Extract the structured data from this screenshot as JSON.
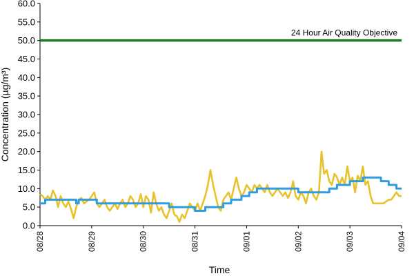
{
  "chart_data": {
    "type": "line",
    "ylabel": "Concentration (µg/m³)",
    "xlabel": "Time",
    "ylim": [
      0,
      60
    ],
    "y_ticks": [
      "0.0",
      "5.0",
      "10.0",
      "15.0",
      "20.0",
      "25.0",
      "30.0",
      "35.0",
      "40.0",
      "45.0",
      "50.0",
      "55.0",
      "60.0"
    ],
    "x_ticks": [
      "08/28",
      "08/29",
      "08/30",
      "08/31",
      "09/01",
      "09/02",
      "09/03",
      "09/04"
    ],
    "xlim": [
      0,
      7
    ],
    "grid": false,
    "objective": {
      "label": "24 Hour Air Quality Objective",
      "value": 50,
      "color": "#1e7a1e"
    },
    "series": [
      {
        "color": "#e8c22a",
        "points": [
          [
            0.0,
            8.5
          ],
          [
            0.05,
            8.0
          ],
          [
            0.1,
            7.0
          ],
          [
            0.15,
            8.0
          ],
          [
            0.2,
            7.0
          ],
          [
            0.25,
            9.5
          ],
          [
            0.3,
            8.0
          ],
          [
            0.35,
            5.0
          ],
          [
            0.4,
            8.0
          ],
          [
            0.45,
            6.0
          ],
          [
            0.5,
            5.0
          ],
          [
            0.55,
            6.5
          ],
          [
            0.6,
            4.5
          ],
          [
            0.65,
            2.0
          ],
          [
            0.7,
            5.0
          ],
          [
            0.75,
            7.0
          ],
          [
            0.8,
            7.5
          ],
          [
            0.85,
            6.0
          ],
          [
            0.9,
            6.5
          ],
          [
            0.95,
            7.0
          ],
          [
            1.0,
            8.0
          ],
          [
            1.05,
            9.0
          ],
          [
            1.1,
            6.0
          ],
          [
            1.15,
            5.0
          ],
          [
            1.2,
            6.0
          ],
          [
            1.25,
            7.0
          ],
          [
            1.3,
            5.0
          ],
          [
            1.35,
            4.0
          ],
          [
            1.4,
            5.0
          ],
          [
            1.45,
            6.0
          ],
          [
            1.5,
            4.5
          ],
          [
            1.55,
            6.0
          ],
          [
            1.6,
            7.0
          ],
          [
            1.65,
            5.0
          ],
          [
            1.7,
            6.0
          ],
          [
            1.75,
            8.0
          ],
          [
            1.8,
            7.0
          ],
          [
            1.85,
            5.0
          ],
          [
            1.9,
            6.0
          ],
          [
            1.95,
            8.5
          ],
          [
            2.0,
            5.0
          ],
          [
            2.05,
            8.0
          ],
          [
            2.1,
            7.0
          ],
          [
            2.15,
            3.5
          ],
          [
            2.2,
            9.0
          ],
          [
            2.25,
            6.0
          ],
          [
            2.3,
            4.0
          ],
          [
            2.35,
            5.0
          ],
          [
            2.4,
            3.0
          ],
          [
            2.45,
            2.0
          ],
          [
            2.5,
            4.0
          ],
          [
            2.55,
            6.0
          ],
          [
            2.6,
            3.0
          ],
          [
            2.65,
            2.5
          ],
          [
            2.7,
            1.0
          ],
          [
            2.75,
            3.0
          ],
          [
            2.8,
            2.0
          ],
          [
            2.85,
            4.0
          ],
          [
            2.9,
            6.0
          ],
          [
            2.95,
            5.0
          ],
          [
            3.0,
            4.0
          ],
          [
            3.05,
            6.0
          ],
          [
            3.1,
            4.0
          ],
          [
            3.15,
            6.0
          ],
          [
            3.2,
            8.0
          ],
          [
            3.25,
            11.0
          ],
          [
            3.3,
            15.0
          ],
          [
            3.35,
            11.0
          ],
          [
            3.4,
            8.0
          ],
          [
            3.45,
            5.0
          ],
          [
            3.5,
            4.0
          ],
          [
            3.55,
            7.0
          ],
          [
            3.6,
            8.0
          ],
          [
            3.65,
            9.0
          ],
          [
            3.7,
            7.0
          ],
          [
            3.75,
            10.0
          ],
          [
            3.8,
            13.0
          ],
          [
            3.85,
            10.0
          ],
          [
            3.9,
            8.0
          ],
          [
            3.95,
            9.0
          ],
          [
            4.0,
            11.0
          ],
          [
            4.05,
            10.0
          ],
          [
            4.1,
            9.0
          ],
          [
            4.15,
            11.0
          ],
          [
            4.2,
            10.0
          ],
          [
            4.25,
            11.0
          ],
          [
            4.3,
            10.0
          ],
          [
            4.35,
            9.0
          ],
          [
            4.4,
            11.0
          ],
          [
            4.45,
            9.0
          ],
          [
            4.5,
            8.0
          ],
          [
            4.55,
            9.0
          ],
          [
            4.6,
            10.0
          ],
          [
            4.65,
            9.0
          ],
          [
            4.7,
            8.0
          ],
          [
            4.75,
            9.0
          ],
          [
            4.8,
            7.5
          ],
          [
            4.85,
            9.0
          ],
          [
            4.9,
            12.0
          ],
          [
            4.95,
            8.0
          ],
          [
            5.0,
            7.0
          ],
          [
            5.05,
            9.0
          ],
          [
            5.1,
            8.0
          ],
          [
            5.15,
            6.0
          ],
          [
            5.2,
            9.0
          ],
          [
            5.25,
            10.0
          ],
          [
            5.3,
            8.0
          ],
          [
            5.35,
            7.0
          ],
          [
            5.4,
            9.0
          ],
          [
            5.45,
            20.0
          ],
          [
            5.5,
            14.0
          ],
          [
            5.55,
            15.0
          ],
          [
            5.6,
            12.0
          ],
          [
            5.65,
            11.0
          ],
          [
            5.7,
            14.0
          ],
          [
            5.75,
            13.0
          ],
          [
            5.8,
            11.0
          ],
          [
            5.85,
            13.0
          ],
          [
            5.9,
            11.0
          ],
          [
            5.95,
            16.0
          ],
          [
            6.0,
            12.0
          ],
          [
            6.05,
            13.0
          ],
          [
            6.1,
            9.0
          ],
          [
            6.15,
            13.5
          ],
          [
            6.2,
            12.0
          ],
          [
            6.25,
            16.0
          ],
          [
            6.3,
            11.0
          ],
          [
            6.35,
            12.0
          ],
          [
            6.4,
            8.0
          ],
          [
            6.45,
            6.0
          ],
          [
            6.5,
            6.0
          ],
          [
            6.55,
            6.0
          ],
          [
            6.6,
            6.0
          ],
          [
            6.65,
            6.0
          ],
          [
            6.7,
            6.5
          ],
          [
            6.75,
            7.0
          ],
          [
            6.8,
            7.0
          ],
          [
            6.85,
            8.0
          ],
          [
            6.9,
            9.0
          ],
          [
            6.95,
            8.0
          ],
          [
            7.0,
            8.0
          ]
        ]
      },
      {
        "color": "#2e9de0",
        "points": [
          [
            0.0,
            6
          ],
          [
            0.1,
            6
          ],
          [
            0.1,
            7
          ],
          [
            0.7,
            7
          ],
          [
            0.7,
            6
          ],
          [
            0.75,
            6
          ],
          [
            0.75,
            7
          ],
          [
            1.1,
            7
          ],
          [
            1.1,
            6
          ],
          [
            2.5,
            6
          ],
          [
            2.5,
            5
          ],
          [
            3.0,
            5
          ],
          [
            3.0,
            4
          ],
          [
            3.2,
            4
          ],
          [
            3.2,
            5
          ],
          [
            3.55,
            5
          ],
          [
            3.55,
            6
          ],
          [
            3.7,
            6
          ],
          [
            3.7,
            7
          ],
          [
            3.9,
            7
          ],
          [
            3.9,
            8
          ],
          [
            4.05,
            8
          ],
          [
            4.05,
            9
          ],
          [
            4.2,
            9
          ],
          [
            4.2,
            10
          ],
          [
            5.0,
            10
          ],
          [
            5.0,
            9
          ],
          [
            5.6,
            9
          ],
          [
            5.6,
            10
          ],
          [
            5.75,
            10
          ],
          [
            5.75,
            11
          ],
          [
            6.0,
            11
          ],
          [
            6.0,
            12
          ],
          [
            6.25,
            12
          ],
          [
            6.25,
            13
          ],
          [
            6.6,
            13
          ],
          [
            6.6,
            12
          ],
          [
            6.75,
            12
          ],
          [
            6.75,
            11
          ],
          [
            6.9,
            11
          ],
          [
            6.9,
            10
          ],
          [
            7.0,
            10
          ]
        ]
      }
    ]
  }
}
